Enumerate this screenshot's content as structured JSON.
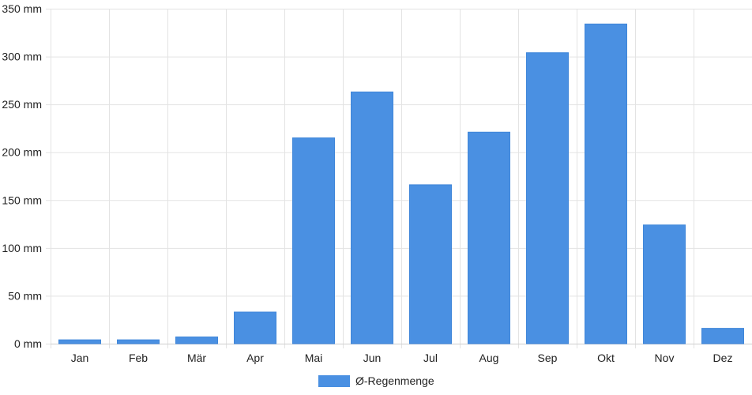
{
  "chart_data": {
    "type": "bar",
    "categories": [
      "Jan",
      "Feb",
      "Mär",
      "Apr",
      "Mai",
      "Jun",
      "Jul",
      "Aug",
      "Sep",
      "Okt",
      "Nov",
      "Dez"
    ],
    "series": [
      {
        "name": "Ø-Regenmenge",
        "values": [
          4,
          4,
          7,
          33,
          215,
          263,
          166,
          221,
          304,
          334,
          124,
          16
        ],
        "color": "#4a90e2"
      }
    ],
    "y_unit": "mm",
    "y_ticks": [
      0,
      50,
      100,
      150,
      200,
      250,
      300,
      350
    ],
    "y_tick_labels": [
      "0 mm",
      "50 mm",
      "100 mm",
      "150 mm",
      "200 mm",
      "250 mm",
      "300 mm",
      "350 mm"
    ],
    "ylim": [
      0,
      350
    ],
    "grid": true,
    "legend_position": "bottom"
  }
}
